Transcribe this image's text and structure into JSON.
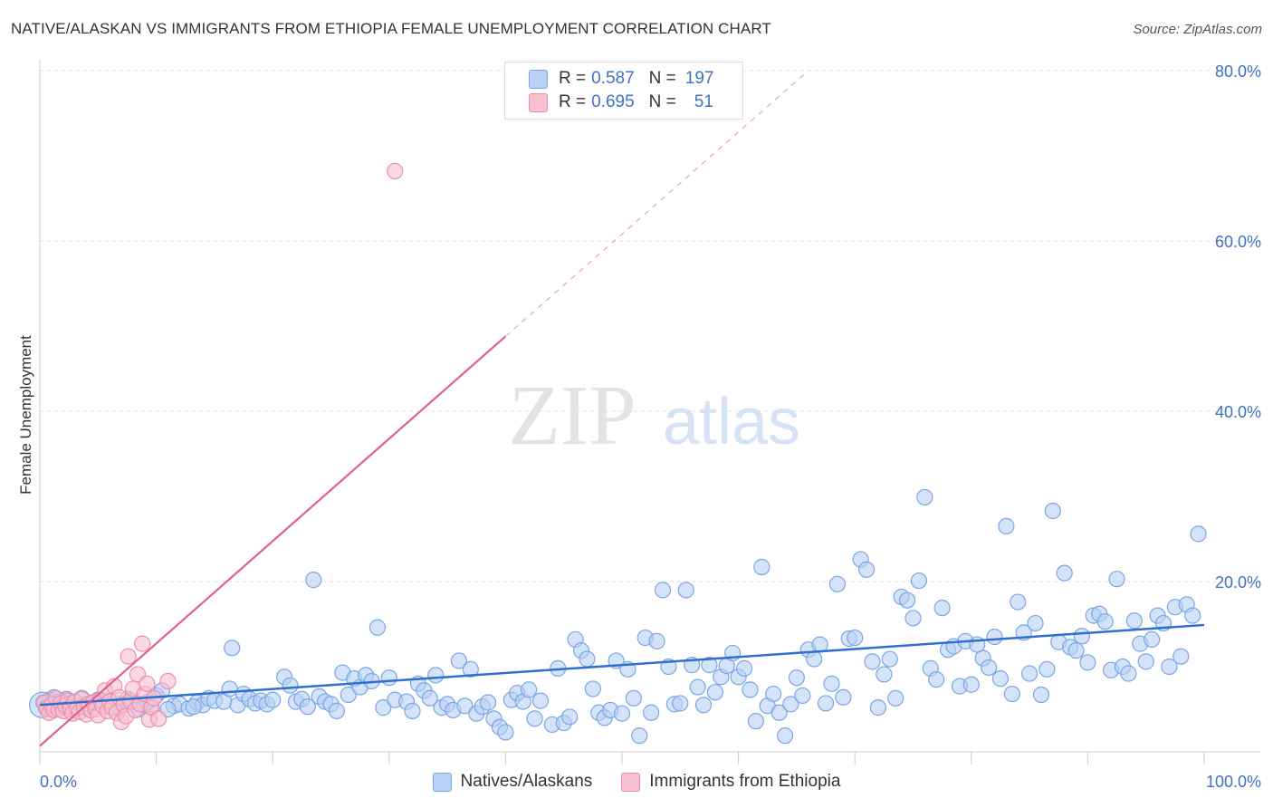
{
  "header": {
    "title": "NATIVE/ALASKAN VS IMMIGRANTS FROM ETHIOPIA FEMALE UNEMPLOYMENT CORRELATION CHART",
    "source": "Source: ZipAtlas.com"
  },
  "watermark": {
    "zip": "ZIP",
    "atlas": "atlas"
  },
  "legend": {
    "rows": [
      {
        "r_label": "R =",
        "r_value": "0.587",
        "n_label": "N =",
        "n_value": "197"
      },
      {
        "r_label": "R =",
        "r_value": "0.695",
        "n_label": "N =",
        "n_value": "51"
      }
    ]
  },
  "bottom_legend": {
    "series1": "Natives/Alaskans",
    "series2": "Immigrants from Ethiopia"
  },
  "colors": {
    "blue_fill": "#b8d0f3",
    "blue_stroke": "#7aa6e6",
    "blue_line": "#2f6fd0",
    "pink_fill": "#f8c0d0",
    "pink_stroke": "#ec8fac",
    "pink_line": "#e0608a",
    "tick_text": "#3f73c2",
    "grid": "#e3e3e3"
  },
  "chart_data": {
    "type": "scatter",
    "xlabel": "",
    "ylabel": "Female Unemployment",
    "xlim": [
      0,
      100
    ],
    "ylim": [
      0,
      80
    ],
    "x_tick_labels": {
      "min": "0.0%",
      "max": "100.0%"
    },
    "y_ticks": [
      {
        "value": 20,
        "label": "20.0%"
      },
      {
        "value": 40,
        "label": "40.0%"
      },
      {
        "value": 60,
        "label": "60.0%"
      },
      {
        "value": 80,
        "label": "80.0%"
      }
    ],
    "grid": true,
    "legend_position": "top-center",
    "series": [
      {
        "name": "Natives/Alaskans",
        "r": 0.587,
        "n": 197,
        "trend": {
          "x0": 0,
          "y0": 5.5,
          "x1": 100,
          "y1": 14.9
        },
        "points": [
          [
            0.3,
            5.8
          ],
          [
            0.5,
            5.2
          ],
          [
            0.8,
            6.1
          ],
          [
            1.0,
            5.0
          ],
          [
            1.2,
            6.4
          ],
          [
            1.5,
            5.5
          ],
          [
            1.8,
            6.0
          ],
          [
            2.0,
            5.3
          ],
          [
            2.3,
            6.2
          ],
          [
            2.6,
            5.7
          ],
          [
            3.0,
            5.9
          ],
          [
            3.3,
            5.1
          ],
          [
            3.6,
            6.3
          ],
          [
            4.0,
            5.4
          ],
          [
            4.5,
            5.8
          ],
          [
            5.0,
            6.1
          ],
          [
            5.5,
            5.5
          ],
          [
            6.0,
            6.0
          ],
          [
            6.5,
            5.2
          ],
          [
            7.0,
            5.6
          ],
          [
            7.5,
            6.2
          ],
          [
            8.0,
            5.9
          ],
          [
            8.5,
            5.0
          ],
          [
            9.0,
            5.5
          ],
          [
            9.5,
            5.3
          ],
          [
            10.0,
            6.6
          ],
          [
            10.5,
            7.2
          ],
          [
            11.5,
            5.4
          ],
          [
            12.0,
            5.6
          ],
          [
            12.8,
            5.1
          ],
          [
            13.5,
            5.8
          ],
          [
            14.0,
            5.5
          ],
          [
            14.5,
            6.3
          ],
          [
            15.0,
            6.0
          ],
          [
            15.8,
            5.9
          ],
          [
            16.3,
            7.4
          ],
          [
            16.5,
            12.2
          ],
          [
            17.0,
            5.5
          ],
          [
            17.5,
            6.8
          ],
          [
            18.0,
            6.2
          ],
          [
            18.5,
            5.7
          ],
          [
            19.0,
            6.0
          ],
          [
            19.5,
            5.6
          ],
          [
            20.0,
            6.1
          ],
          [
            21.0,
            8.8
          ],
          [
            21.5,
            7.8
          ],
          [
            22.0,
            5.9
          ],
          [
            22.5,
            6.2
          ],
          [
            23.0,
            5.3
          ],
          [
            23.5,
            20.2
          ],
          [
            24.0,
            6.5
          ],
          [
            24.5,
            5.9
          ],
          [
            25.0,
            5.6
          ],
          [
            25.5,
            4.8
          ],
          [
            26.0,
            9.3
          ],
          [
            26.5,
            6.7
          ],
          [
            27.0,
            8.6
          ],
          [
            27.5,
            7.6
          ],
          [
            28.0,
            9.0
          ],
          [
            28.5,
            8.3
          ],
          [
            29.0,
            14.6
          ],
          [
            29.5,
            5.2
          ],
          [
            30.0,
            8.7
          ],
          [
            30.5,
            6.1
          ],
          [
            31.5,
            5.9
          ],
          [
            32.0,
            4.8
          ],
          [
            32.5,
            8.0
          ],
          [
            33.0,
            7.2
          ],
          [
            33.5,
            6.3
          ],
          [
            34.0,
            9.0
          ],
          [
            34.5,
            5.2
          ],
          [
            35.0,
            5.6
          ],
          [
            35.5,
            4.9
          ],
          [
            36.0,
            10.7
          ],
          [
            36.5,
            5.4
          ],
          [
            37.0,
            9.7
          ],
          [
            37.5,
            4.5
          ],
          [
            38.0,
            5.3
          ],
          [
            38.5,
            5.8
          ],
          [
            39.0,
            3.9
          ],
          [
            39.5,
            2.9
          ],
          [
            40.0,
            2.3
          ],
          [
            40.5,
            6.1
          ],
          [
            41.0,
            6.9
          ],
          [
            41.5,
            5.9
          ],
          [
            42.0,
            7.3
          ],
          [
            42.5,
            3.9
          ],
          [
            43.0,
            6.0
          ],
          [
            44.0,
            3.2
          ],
          [
            44.5,
            9.8
          ],
          [
            45.0,
            3.4
          ],
          [
            45.5,
            4.1
          ],
          [
            46.0,
            13.2
          ],
          [
            46.5,
            11.9
          ],
          [
            47.0,
            10.9
          ],
          [
            47.5,
            7.4
          ],
          [
            48.0,
            4.6
          ],
          [
            48.5,
            4.0
          ],
          [
            49.0,
            4.9
          ],
          [
            49.5,
            10.7
          ],
          [
            50.0,
            4.5
          ],
          [
            50.5,
            9.7
          ],
          [
            51.0,
            6.3
          ],
          [
            51.5,
            1.9
          ],
          [
            52.0,
            13.4
          ],
          [
            52.5,
            4.6
          ],
          [
            53.0,
            13.0
          ],
          [
            53.5,
            19.0
          ],
          [
            54.0,
            10.0
          ],
          [
            54.5,
            5.6
          ],
          [
            55.0,
            5.7
          ],
          [
            55.5,
            19.0
          ],
          [
            56.0,
            10.2
          ],
          [
            56.5,
            7.6
          ],
          [
            57.0,
            5.5
          ],
          [
            57.5,
            10.2
          ],
          [
            58.0,
            7.0
          ],
          [
            58.5,
            8.8
          ],
          [
            59.0,
            10.1
          ],
          [
            59.5,
            11.6
          ],
          [
            60.0,
            8.8
          ],
          [
            60.5,
            9.8
          ],
          [
            61.0,
            7.3
          ],
          [
            61.5,
            3.6
          ],
          [
            62.0,
            21.7
          ],
          [
            62.5,
            5.4
          ],
          [
            63.0,
            6.8
          ],
          [
            63.5,
            4.6
          ],
          [
            64.0,
            1.9
          ],
          [
            64.5,
            5.6
          ],
          [
            65.0,
            8.7
          ],
          [
            65.5,
            6.6
          ],
          [
            66.0,
            12.0
          ],
          [
            66.5,
            10.9
          ],
          [
            67.0,
            12.6
          ],
          [
            67.5,
            5.7
          ],
          [
            68.0,
            8.0
          ],
          [
            68.5,
            19.7
          ],
          [
            69.0,
            6.4
          ],
          [
            69.5,
            13.3
          ],
          [
            70.0,
            13.4
          ],
          [
            70.5,
            22.6
          ],
          [
            71.0,
            21.4
          ],
          [
            71.5,
            10.6
          ],
          [
            72.0,
            5.2
          ],
          [
            72.5,
            9.1
          ],
          [
            73.0,
            10.9
          ],
          [
            73.5,
            6.3
          ],
          [
            74.0,
            18.2
          ],
          [
            74.5,
            17.8
          ],
          [
            75.0,
            15.7
          ],
          [
            75.5,
            20.1
          ],
          [
            76.0,
            29.9
          ],
          [
            76.5,
            9.8
          ],
          [
            77.0,
            8.5
          ],
          [
            77.5,
            16.9
          ],
          [
            78.0,
            12.0
          ],
          [
            78.5,
            12.4
          ],
          [
            79.0,
            7.7
          ],
          [
            79.5,
            13.0
          ],
          [
            80.0,
            7.9
          ],
          [
            80.5,
            12.6
          ],
          [
            81.0,
            11.0
          ],
          [
            81.5,
            9.9
          ],
          [
            82.0,
            13.5
          ],
          [
            82.5,
            8.6
          ],
          [
            83.0,
            26.5
          ],
          [
            83.5,
            6.8
          ],
          [
            84.0,
            17.6
          ],
          [
            84.5,
            14.0
          ],
          [
            85.0,
            9.2
          ],
          [
            85.5,
            15.1
          ],
          [
            86.0,
            6.7
          ],
          [
            86.5,
            9.7
          ],
          [
            87.0,
            28.3
          ],
          [
            87.5,
            12.9
          ],
          [
            88.0,
            21.0
          ],
          [
            88.5,
            12.3
          ],
          [
            89.0,
            11.9
          ],
          [
            89.5,
            13.6
          ],
          [
            90.0,
            10.5
          ],
          [
            90.5,
            16.0
          ],
          [
            91.0,
            16.2
          ],
          [
            91.5,
            15.3
          ],
          [
            92.0,
            9.6
          ],
          [
            92.5,
            20.3
          ],
          [
            93.0,
            10.0
          ],
          [
            93.5,
            9.2
          ],
          [
            94.0,
            15.4
          ],
          [
            94.5,
            12.7
          ],
          [
            95.0,
            10.6
          ],
          [
            95.5,
            13.2
          ],
          [
            96.0,
            16.0
          ],
          [
            96.5,
            15.1
          ],
          [
            97.0,
            10.0
          ],
          [
            97.5,
            17.0
          ],
          [
            98.0,
            11.2
          ],
          [
            98.5,
            17.3
          ],
          [
            99.0,
            16.0
          ],
          [
            99.5,
            25.6
          ],
          [
            1.0,
            5.6
          ],
          [
            2.5,
            5.0
          ],
          [
            4.2,
            5.6
          ],
          [
            6.8,
            5.3
          ],
          [
            9.2,
            5.8
          ],
          [
            11.0,
            5.0
          ],
          [
            13.2,
            5.3
          ]
        ]
      },
      {
        "name": "Immigrants from Ethiopia",
        "r": 0.695,
        "n": 51,
        "trend": {
          "x0": 0,
          "y0": 0.7,
          "x1": 40,
          "y1": 48.8
        },
        "trend_extended": {
          "x0": 40,
          "y0": 48.8,
          "x1": 66,
          "y1": 80
        },
        "points": [
          [
            0.4,
            5.8
          ],
          [
            0.6,
            5.1
          ],
          [
            0.8,
            4.6
          ],
          [
            1.0,
            5.5
          ],
          [
            1.2,
            4.9
          ],
          [
            1.4,
            6.3
          ],
          [
            1.6,
            5.0
          ],
          [
            1.8,
            5.7
          ],
          [
            2.0,
            4.8
          ],
          [
            2.2,
            5.4
          ],
          [
            2.4,
            6.0
          ],
          [
            2.6,
            5.2
          ],
          [
            2.8,
            4.5
          ],
          [
            3.0,
            5.9
          ],
          [
            3.2,
            5.1
          ],
          [
            3.4,
            4.7
          ],
          [
            3.6,
            6.2
          ],
          [
            3.8,
            5.3
          ],
          [
            4.0,
            4.4
          ],
          [
            4.2,
            5.6
          ],
          [
            4.4,
            4.9
          ],
          [
            4.6,
            5.8
          ],
          [
            4.8,
            5.0
          ],
          [
            5.0,
            4.3
          ],
          [
            5.2,
            6.1
          ],
          [
            5.4,
            5.4
          ],
          [
            5.6,
            7.2
          ],
          [
            5.8,
            4.8
          ],
          [
            6.0,
            5.9
          ],
          [
            6.2,
            5.2
          ],
          [
            6.4,
            7.7
          ],
          [
            6.6,
            4.6
          ],
          [
            6.8,
            6.4
          ],
          [
            7.0,
            3.5
          ],
          [
            7.2,
            5.5
          ],
          [
            7.4,
            4.2
          ],
          [
            7.6,
            11.2
          ],
          [
            7.8,
            6.0
          ],
          [
            8.0,
            7.4
          ],
          [
            8.2,
            4.9
          ],
          [
            8.4,
            9.1
          ],
          [
            8.6,
            5.6
          ],
          [
            8.8,
            12.7
          ],
          [
            9.0,
            6.8
          ],
          [
            9.2,
            8.0
          ],
          [
            9.4,
            3.8
          ],
          [
            9.6,
            5.2
          ],
          [
            9.8,
            6.3
          ],
          [
            10.2,
            3.9
          ],
          [
            11.0,
            8.3
          ],
          [
            30.5,
            68.2
          ]
        ]
      }
    ]
  }
}
